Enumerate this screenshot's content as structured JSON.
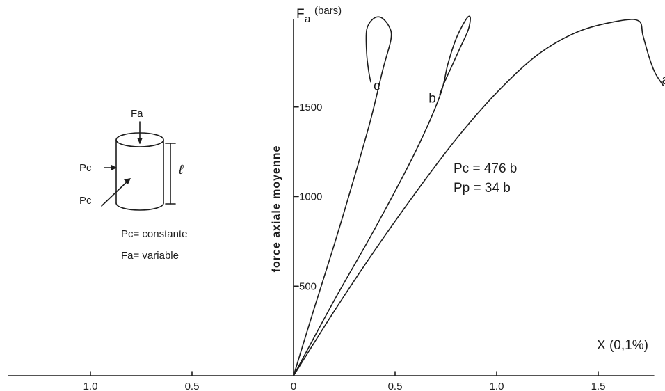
{
  "chart_data": {
    "type": "line",
    "title": "",
    "xlabel": "X (0,1%)",
    "ylabel": "force axiale moyenne",
    "y_unit_label": "(bars)",
    "y_axis_symbol": "F",
    "y_axis_symbol_sub": "a",
    "xlim": [
      -1.4,
      1.8
    ],
    "ylim": [
      0,
      2000
    ],
    "x_ticks": [
      {
        "value": -1.0,
        "label": "1.0"
      },
      {
        "value": -0.5,
        "label": "0.5"
      },
      {
        "value": 0,
        "label": "0"
      },
      {
        "value": 0.5,
        "label": "0.5"
      },
      {
        "value": 1.0,
        "label": "1.0"
      },
      {
        "value": 1.5,
        "label": "1.5"
      }
    ],
    "y_ticks": [
      {
        "value": 500,
        "label": "500"
      },
      {
        "value": 1000,
        "label": "1000"
      },
      {
        "value": 1500,
        "label": "1500"
      }
    ],
    "grid": false,
    "legend": "none",
    "series": [
      {
        "name": "a",
        "points": [
          [
            0,
            0
          ],
          [
            0.2,
            360
          ],
          [
            0.4,
            700
          ],
          [
            0.6,
            1020
          ],
          [
            0.8,
            1320
          ],
          [
            1.0,
            1580
          ],
          [
            1.2,
            1790
          ],
          [
            1.4,
            1920
          ],
          [
            1.6,
            1980
          ],
          [
            1.7,
            1980
          ],
          [
            1.72,
            1900
          ],
          [
            1.75,
            1780
          ],
          [
            1.78,
            1690
          ],
          [
            1.82,
            1620
          ]
        ]
      },
      {
        "name": "b",
        "points": [
          [
            0,
            0
          ],
          [
            0.2,
            420
          ],
          [
            0.4,
            820
          ],
          [
            0.6,
            1250
          ],
          [
            0.72,
            1560
          ],
          [
            0.76,
            1740
          ],
          [
            0.8,
            1880
          ],
          [
            0.85,
            1990
          ],
          [
            0.87,
            2000
          ],
          [
            0.86,
            1930
          ],
          [
            0.82,
            1830
          ],
          [
            0.78,
            1730
          ],
          [
            0.74,
            1630
          ],
          [
            0.72,
            1570
          ]
        ]
      },
      {
        "name": "c",
        "points": [
          [
            0,
            0
          ],
          [
            0.1,
            370
          ],
          [
            0.2,
            730
          ],
          [
            0.3,
            1110
          ],
          [
            0.38,
            1430
          ],
          [
            0.44,
            1710
          ],
          [
            0.48,
            1880
          ],
          [
            0.47,
            1950
          ],
          [
            0.43,
            2000
          ],
          [
            0.39,
            1990
          ],
          [
            0.36,
            1930
          ],
          [
            0.36,
            1800
          ],
          [
            0.37,
            1700
          ],
          [
            0.38,
            1640
          ]
        ]
      }
    ],
    "annotations": {
      "pc_label": "Pc = 476 b",
      "pp_label": "Pp = 34 b"
    }
  },
  "labels": {
    "fa_label": "Fa",
    "pc_side": "Pc",
    "pc_diag": "Pc",
    "length_symbol": "ℓ",
    "caption_line1": "Pc= constante",
    "caption_line2": "Fa= variable"
  }
}
